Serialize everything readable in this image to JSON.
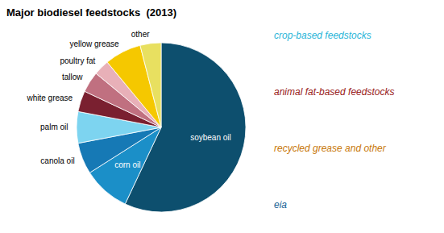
{
  "chart_data": {
    "type": "pie",
    "title": "Major biodiesel feedstocks  (2013)",
    "categories": [
      "soybean oil",
      "corn oil",
      "canola oil",
      "palm oil",
      "white grease",
      "tallow",
      "poultry fat",
      "yellow grease",
      "other"
    ],
    "values": [
      57,
      9,
      6,
      6,
      4,
      4,
      3,
      7,
      4
    ],
    "colors": [
      "#0d4f6e",
      "#1b8fc8",
      "#1679b5",
      "#7dd4f0",
      "#7a2030",
      "#c07080",
      "#e8b0b8",
      "#f5c800",
      "#e8e060"
    ],
    "annotations": [
      {
        "text": "crop-based feedstocks",
        "color": "#29b5d8"
      },
      {
        "text": "animal fat-based feedstocks",
        "color": "#992222"
      },
      {
        "text": "recycled grease and other",
        "color": "#c8780a"
      },
      {
        "text": "eia",
        "color": "#1a6496"
      }
    ]
  }
}
